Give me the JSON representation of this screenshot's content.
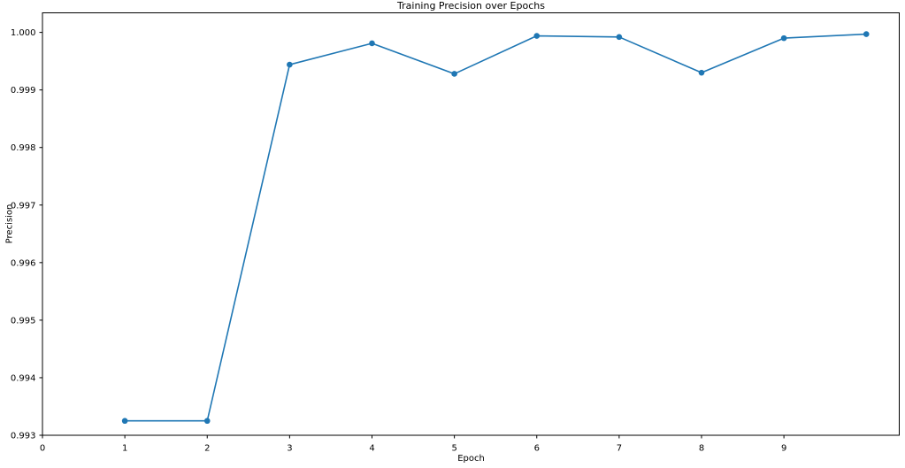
{
  "chart_data": {
    "type": "line",
    "title": "Training Precision over Epochs",
    "xlabel": "Epoch",
    "ylabel": "Precision",
    "x": [
      1,
      2,
      3,
      4,
      5,
      6,
      7,
      8,
      9,
      10
    ],
    "y": [
      0.99325,
      0.99325,
      0.99944,
      0.99981,
      0.99928,
      0.99994,
      0.99992,
      0.9993,
      0.9999,
      0.99997
    ],
    "xlim": [
      0,
      10.4
    ],
    "ylim": [
      0.993,
      1.00034
    ],
    "xticks": [
      0,
      1,
      2,
      3,
      4,
      5,
      6,
      7,
      8,
      9
    ],
    "xtick_labels": [
      "0",
      "1",
      "2",
      "3",
      "4",
      "5",
      "6",
      "7",
      "8",
      "9"
    ],
    "yticks": [
      0.993,
      0.994,
      0.995,
      0.996,
      0.997,
      0.998,
      0.999,
      1.0
    ],
    "ytick_labels": [
      "0.993",
      "0.994",
      "0.995",
      "0.996",
      "0.997",
      "0.998",
      "0.999",
      "1.000"
    ],
    "grid": false,
    "legend_position": "none",
    "line_color": "#1f77b4",
    "marker": "circle",
    "axis_color": "#000000",
    "text_color": "#000000",
    "background_color": "#ffffff"
  }
}
